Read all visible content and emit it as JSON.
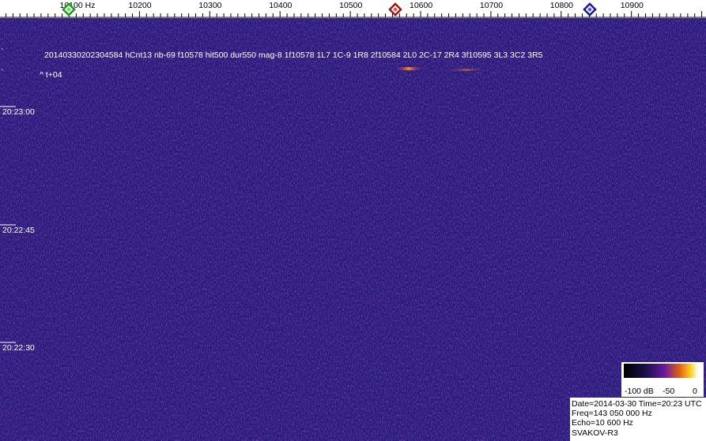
{
  "frequency_axis": {
    "labels": [
      "10100 Hz",
      "10200",
      "10300",
      "10400",
      "10500",
      "10600",
      "10700",
      "10800",
      "10900"
    ]
  },
  "annotation": {
    "marks": [
      "`",
      "`"
    ],
    "detection": "20140330202304584 hCnt13 nb-69 f10578 hit500 dur550 mag-8 1f10578 1L7 1C-9 1R8 2f10584 2L0 2C-17 2R4 3f10595 3L3 3C2 3R5",
    "offset": "^ t+04"
  },
  "time_labels": [
    "20:23:00",
    "20:22:45",
    "20:22:30"
  ],
  "colorbar": {
    "labels": [
      "-100 dB",
      "-50",
      "0"
    ]
  },
  "info": {
    "lines": [
      "Date=2014-03-30 Time=20:23 UTC",
      "Freq=143 050 000 Hz",
      "Echo=10 600 Hz",
      "SVAKOV-R3"
    ]
  }
}
